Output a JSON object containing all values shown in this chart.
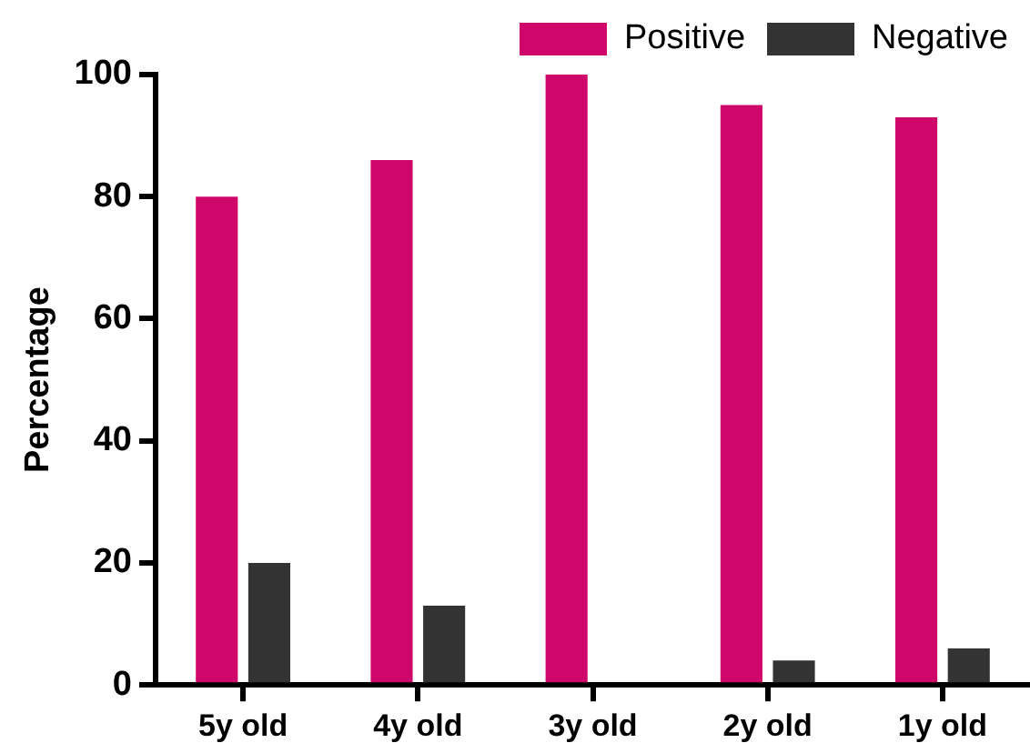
{
  "chart_data": {
    "type": "bar",
    "ylabel": "Percentage",
    "categories": [
      "5y old",
      "4y old",
      "3y old",
      "2y old",
      "1y old"
    ],
    "series": [
      {
        "name": "Positive",
        "color": "#d0076a",
        "values": [
          80,
          86,
          100,
          95,
          93
        ]
      },
      {
        "name": "Negative",
        "color": "#333333",
        "values": [
          20,
          13,
          0,
          4,
          6
        ]
      }
    ],
    "ylim": [
      0,
      100
    ],
    "yticks": [
      0,
      20,
      40,
      60,
      80,
      100
    ],
    "grid": false,
    "legend": "top right"
  }
}
